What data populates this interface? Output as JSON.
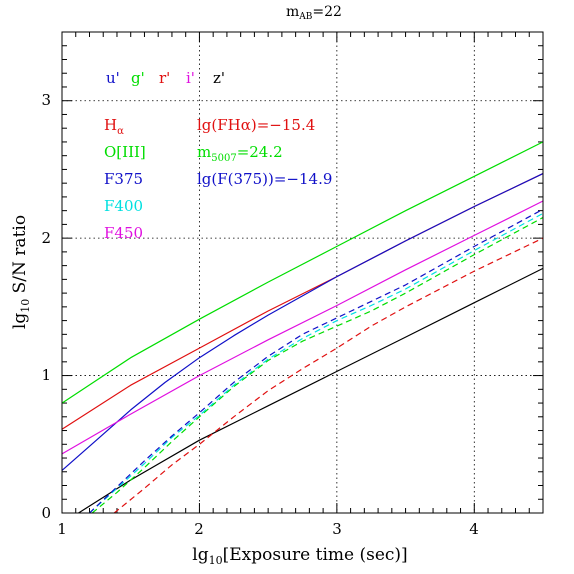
{
  "chart_data": {
    "type": "line",
    "title_main": "m",
    "title_sub": "AB",
    "title_value": "=22",
    "xlabel_pre": "lg",
    "xlabel_sub": "10",
    "xlabel_post": "[Exposure time (sec)]",
    "ylabel_pre": "lg",
    "ylabel_sub": "10",
    "ylabel_post": " S/N ratio",
    "xlim": [
      1,
      4.5
    ],
    "ylim": [
      0,
      3.5
    ],
    "xticks": [
      "1",
      "2",
      "3",
      "4"
    ],
    "yticks": [
      "0",
      "1",
      "2",
      "3"
    ],
    "grid": true,
    "colors": {
      "black": "#000000",
      "blue": "#1010c8",
      "green": "#00dd00",
      "red": "#e01010",
      "magenta": "#e010e0",
      "cyan": "#00e0e0"
    },
    "filters_legend": [
      {
        "label": "u'",
        "color": "blue"
      },
      {
        "label": "g'",
        "color": "green"
      },
      {
        "label": "r'",
        "color": "red"
      },
      {
        "label": "i'",
        "color": "magenta"
      },
      {
        "label": "z'",
        "color": "black"
      }
    ],
    "line_legend": [
      {
        "label": "H",
        "sub": "α",
        "color": "red"
      },
      {
        "label": "O[III]",
        "color": "green"
      },
      {
        "label": "F375",
        "color": "blue"
      },
      {
        "label": "F400",
        "color": "cyan"
      },
      {
        "label": "F450",
        "color": "magenta"
      }
    ],
    "flux_labels": [
      {
        "text": "lg(FHα)=−15.4",
        "color": "red"
      },
      {
        "text_pre": "m",
        "text_sub": "5007",
        "text_post": "=24.2",
        "color": "green"
      },
      {
        "text": "lg(F(375))=−14.9",
        "color": "blue"
      }
    ],
    "series": [
      {
        "name": "g'",
        "color": "green",
        "dash": false,
        "x": [
          1.0,
          1.5,
          2.0,
          2.5,
          3.0,
          3.5,
          4.0,
          4.5
        ],
        "y": [
          0.8,
          1.13,
          1.41,
          1.68,
          1.94,
          2.2,
          2.45,
          2.7
        ]
      },
      {
        "name": "r'",
        "color": "red",
        "dash": false,
        "x": [
          1.0,
          1.5,
          2.0,
          2.5,
          3.0,
          3.5,
          4.0,
          4.5
        ],
        "y": [
          0.61,
          0.93,
          1.2,
          1.47,
          1.72,
          1.98,
          2.23,
          2.47
        ]
      },
      {
        "name": "u'",
        "color": "blue",
        "dash": false,
        "x": [
          1.0,
          1.25,
          1.5,
          1.75,
          2.0,
          2.25,
          2.5,
          3.0,
          3.5,
          4.0,
          4.5
        ],
        "y": [
          0.31,
          0.53,
          0.75,
          0.95,
          1.13,
          1.29,
          1.44,
          1.72,
          1.98,
          2.23,
          2.47
        ]
      },
      {
        "name": "i'",
        "color": "magenta",
        "dash": false,
        "x": [
          1.0,
          1.5,
          2.0,
          2.5,
          3.0,
          3.5,
          4.0,
          4.5
        ],
        "y": [
          0.43,
          0.72,
          1.0,
          1.26,
          1.51,
          1.77,
          2.02,
          2.27
        ]
      },
      {
        "name": "z'",
        "color": "black",
        "dash": false,
        "x": [
          1.12,
          1.5,
          2.0,
          2.5,
          3.0,
          3.5,
          4.0,
          4.5
        ],
        "y": [
          0.0,
          0.24,
          0.53,
          0.78,
          1.03,
          1.28,
          1.53,
          1.78
        ]
      },
      {
        "name": "H-alpha",
        "color": "red",
        "dash": true,
        "x": [
          1.38,
          1.6,
          1.8,
          2.0,
          2.25,
          2.5,
          2.75,
          3.0,
          3.25,
          3.5,
          4.0,
          4.5
        ],
        "y": [
          0.0,
          0.18,
          0.35,
          0.5,
          0.7,
          0.89,
          1.05,
          1.2,
          1.36,
          1.5,
          1.76,
          2.0
        ]
      },
      {
        "name": "O[III]",
        "color": "green",
        "dash": true,
        "x": [
          1.22,
          1.4,
          1.6,
          1.8,
          2.0,
          2.25,
          2.5,
          2.75,
          3.0,
          3.25,
          3.5,
          4.0,
          4.5
        ],
        "y": [
          0.0,
          0.15,
          0.33,
          0.52,
          0.7,
          0.92,
          1.11,
          1.25,
          1.36,
          1.47,
          1.6,
          1.88,
          2.15
        ]
      },
      {
        "name": "F400",
        "color": "cyan",
        "dash": true,
        "x": [
          1.2,
          1.4,
          1.6,
          1.8,
          2.0,
          2.25,
          2.5,
          2.75,
          3.0,
          3.25,
          3.5,
          4.0,
          4.5
        ],
        "y": [
          0.0,
          0.18,
          0.36,
          0.55,
          0.71,
          0.93,
          1.12,
          1.27,
          1.4,
          1.51,
          1.63,
          1.91,
          2.18
        ]
      },
      {
        "name": "F375",
        "color": "blue",
        "dash": true,
        "x": [
          1.2,
          1.4,
          1.6,
          1.8,
          2.0,
          2.25,
          2.5,
          2.75,
          3.0,
          3.25,
          3.5,
          4.0,
          4.5
        ],
        "y": [
          0.0,
          0.19,
          0.38,
          0.56,
          0.73,
          0.95,
          1.14,
          1.3,
          1.42,
          1.54,
          1.66,
          1.94,
          2.21
        ]
      }
    ]
  }
}
